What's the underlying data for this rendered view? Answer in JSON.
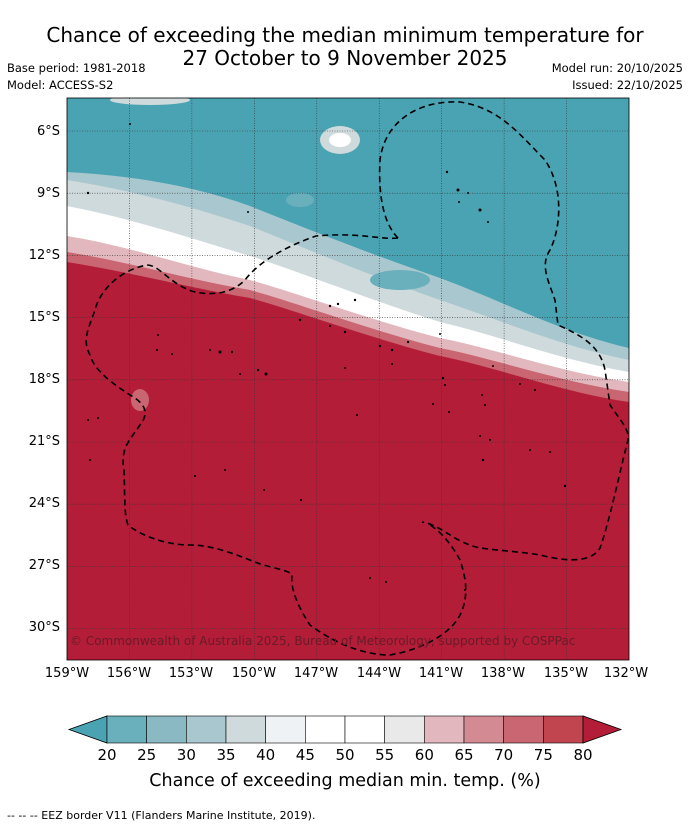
{
  "title": {
    "line1": "Chance of exceeding the median minimum temperature for",
    "line2": "27 October to 9 November 2025"
  },
  "meta": {
    "base_period": "Base period: 1981-2018",
    "model": "Model: ACCESS-S2",
    "model_run": "Model run: 20/10/2025",
    "issued": "Issued: 22/10/2025"
  },
  "map": {
    "lat_labels": [
      "6°S",
      "9°S",
      "12°S",
      "15°S",
      "18°S",
      "21°S",
      "24°S",
      "27°S",
      "30°S"
    ],
    "lon_labels": [
      "159°W",
      "156°W",
      "153°W",
      "150°W",
      "147°W",
      "144°W",
      "141°W",
      "138°W",
      "135°W",
      "132°W"
    ],
    "copyright": "© Commonwealth of Australia 2025, Bureau of Meteorology, supported by COSPPac",
    "colors": {
      "below": "#4aa3b3",
      "above": "#b31d38",
      "land": "#000000",
      "grid": "#333333"
    }
  },
  "colorbar": {
    "ticks": [
      "20",
      "25",
      "30",
      "35",
      "40",
      "45",
      "50",
      "55",
      "60",
      "65",
      "70",
      "75",
      "80"
    ],
    "label": "Chance of exceeding median min. temp. (%)",
    "colors": [
      "#4aa3b3",
      "#6aafbc",
      "#8ab9c4",
      "#a9c7ce",
      "#cfdadd",
      "#eef2f4",
      "#ffffff",
      "#ffffff",
      "#e9e9e9",
      "#e2b8be",
      "#d48a93",
      "#c96671",
      "#c1454f",
      "#b31d38"
    ]
  },
  "footnote": "--  --  -- EEZ border V11 (Flanders Marine Institute, 2019)."
}
